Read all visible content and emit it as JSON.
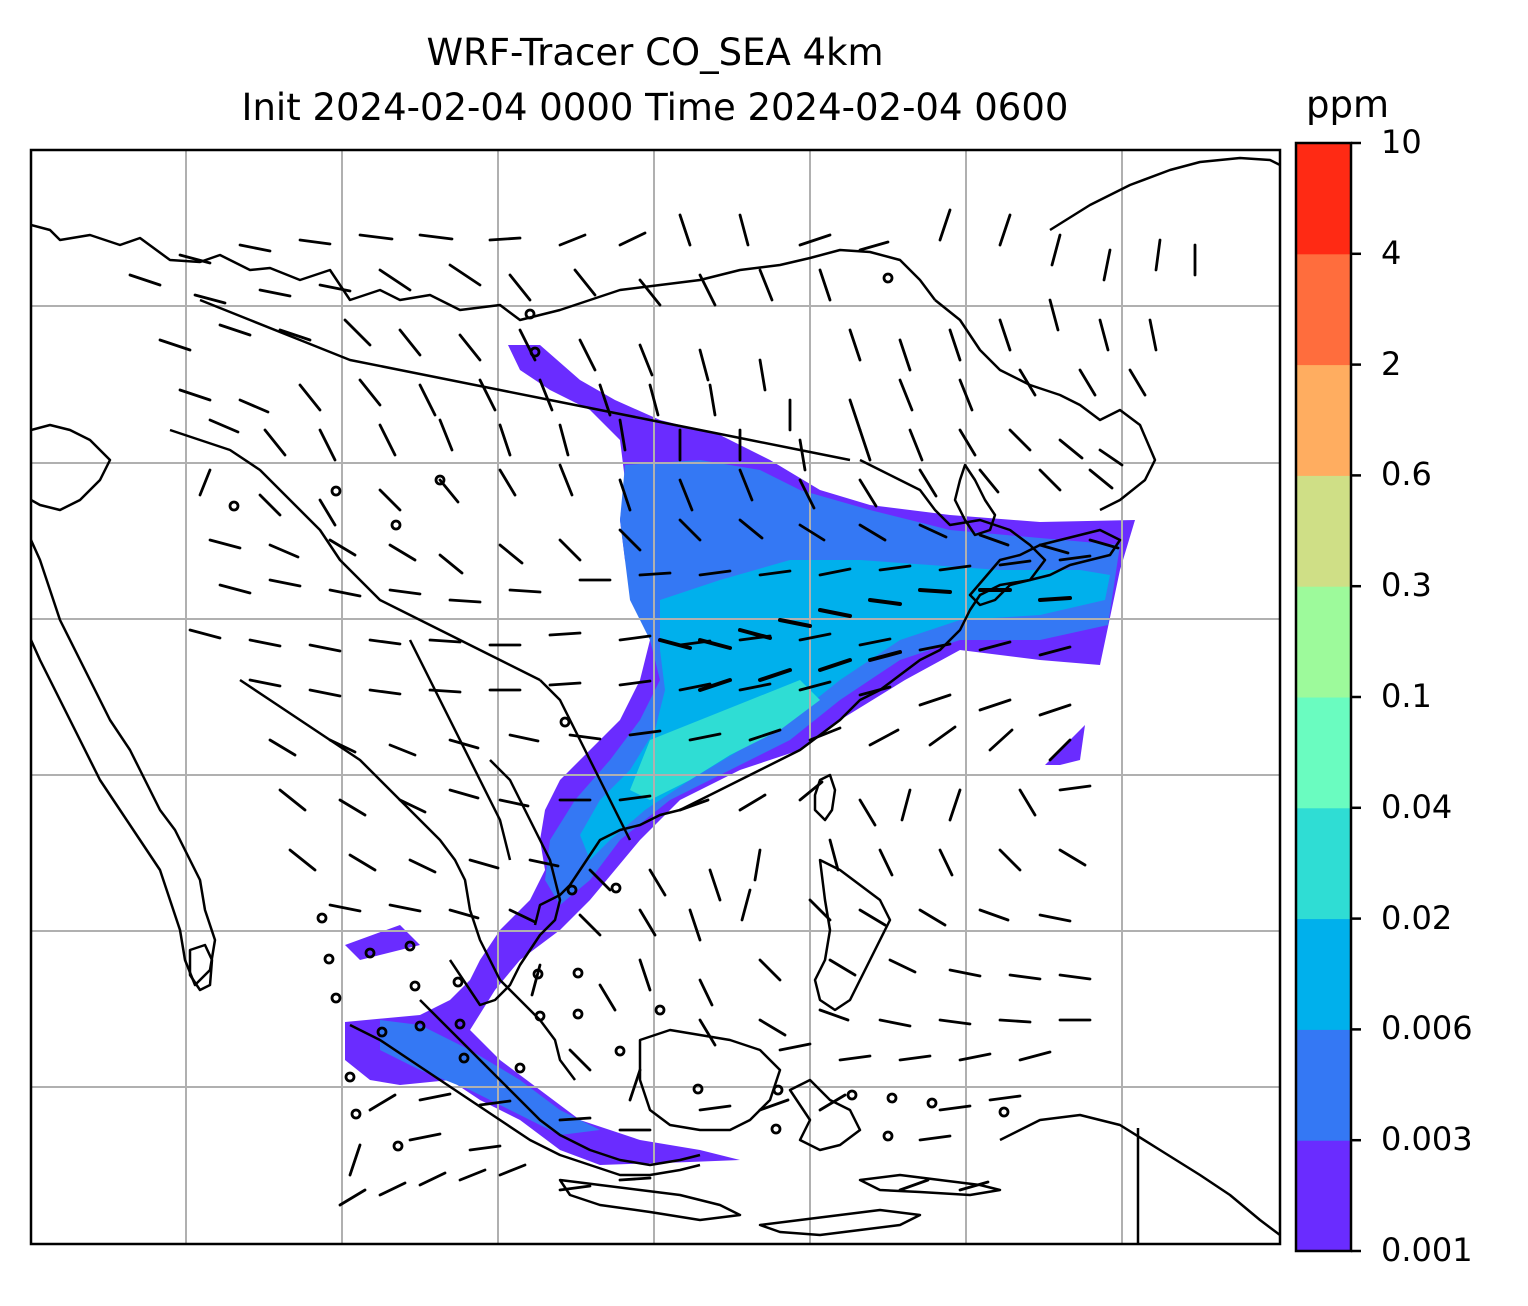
{
  "title": {
    "line1": "WRF-Tracer CO_SEA 4km",
    "line2": "Init 2024-02-04 0000 Time 2024-02-04 0600"
  },
  "colorbar": {
    "unit": "ppm",
    "levels": [
      "0.001",
      "0.003",
      "0.006",
      "0.02",
      "0.04",
      "0.1",
      "0.3",
      "0.6",
      "2",
      "4",
      "10"
    ],
    "colors": [
      "#6a2cff",
      "#3478f4",
      "#00b0ec",
      "#2fddd4",
      "#6afcc0",
      "#9dfa9b",
      "#cfdf86",
      "#ffad60",
      "#ff6d3d",
      "#ff2a14"
    ]
  },
  "map": {
    "gridlines": true,
    "gridline_color": "#b0b0b0",
    "coastline_color": "#000000",
    "wind_barbs": true,
    "shading": "CO tracer concentration plume extending from Southeast Asia northeastward over southern China, Taiwan and the western Pacific"
  }
}
